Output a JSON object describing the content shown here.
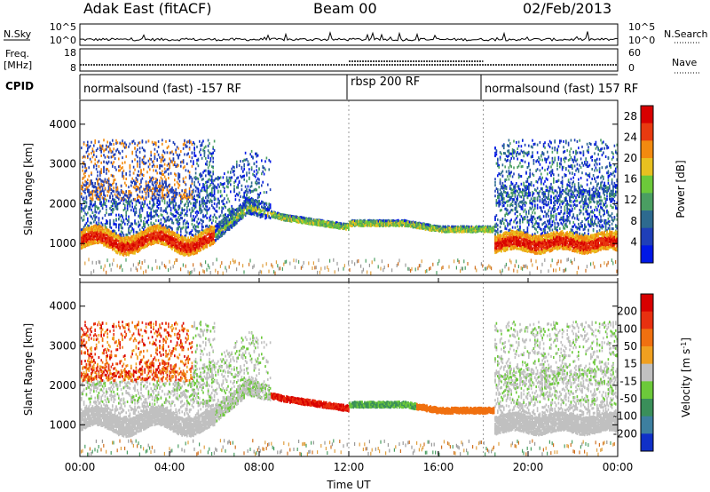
{
  "header": {
    "station": "Adak East (fitACF)",
    "beam": "Beam 00",
    "date": "02/Feb/2013"
  },
  "nsky_panel": {
    "left_label": "N.Sky",
    "right_label": "N.Search",
    "left_ticks": [
      "10^5",
      "10^0"
    ],
    "right_ticks": [
      "10^5",
      "10^0"
    ]
  },
  "freq_panel": {
    "left_label_1": "Freq.",
    "left_label_2": "[MHz]",
    "right_label": "Nave",
    "left_ticks": [
      "18",
      "8"
    ],
    "right_ticks": [
      "60",
      "0"
    ]
  },
  "cpid": {
    "label": "CPID",
    "segments": [
      {
        "text": "normalsound (fast) -157 RF",
        "start_hour": 0
      },
      {
        "text": "rbsp 200 RF",
        "start_hour": 12
      },
      {
        "text": "normalsound (fast) 157 RF",
        "start_hour": 18
      }
    ]
  },
  "chart_data": [
    {
      "type": "heatmap",
      "panel": "power",
      "ylabel": "Slant Range [km]",
      "xlabel": "",
      "ylim": [
        200,
        4600
      ],
      "xlim_hours": [
        0,
        24
      ],
      "yticks": [
        "1000",
        "2000",
        "3000",
        "4000"
      ],
      "colorbar": {
        "label": "Power [dB]",
        "ticks": [
          "4",
          "8",
          "12",
          "16",
          "20",
          "24",
          "28"
        ],
        "range": [
          0,
          30
        ],
        "colors": [
          "#0018e6",
          "#1f3fb8",
          "#2d6a8f",
          "#4a9e62",
          "#6cc93a",
          "#e8c020",
          "#f28a10",
          "#e83a10",
          "#d80000"
        ]
      },
      "features": [
        {
          "desc_hours": [
            0,
            6
          ],
          "range_km": [
            850,
            1400
          ],
          "level": "high"
        },
        {
          "desc_hours": [
            6,
            8
          ],
          "range_km": [
            1200,
            2000
          ],
          "level": "medium"
        },
        {
          "desc_hours": [
            8,
            18
          ],
          "range_km": [
            1300,
            1600
          ],
          "level": "medium"
        },
        {
          "desc_hours": [
            18.5,
            24
          ],
          "range_km": [
            850,
            1400
          ],
          "level": "high"
        }
      ]
    },
    {
      "type": "heatmap",
      "panel": "velocity",
      "ylabel": "Slant Range [km]",
      "xlabel": "Time UT",
      "ylim": [
        200,
        4600
      ],
      "xlim_hours": [
        0,
        24
      ],
      "yticks": [
        "1000",
        "2000",
        "3000",
        "4000"
      ],
      "xticks": [
        "00:00",
        "04:00",
        "08:00",
        "12:00",
        "16:00",
        "20:00",
        "00:00"
      ],
      "colorbar": {
        "label": "Velocity [m s^-1]",
        "ticks": [
          "200",
          "100",
          "50",
          "15",
          "-15",
          "-50",
          "-100",
          "-200"
        ],
        "range": [
          -250,
          250
        ],
        "colors": [
          "#1030c8",
          "#3d7fa0",
          "#3a8f5a",
          "#6cc93a",
          "#c0c0c0",
          "#f0a020",
          "#f07010",
          "#e83010",
          "#d80000"
        ]
      }
    }
  ]
}
